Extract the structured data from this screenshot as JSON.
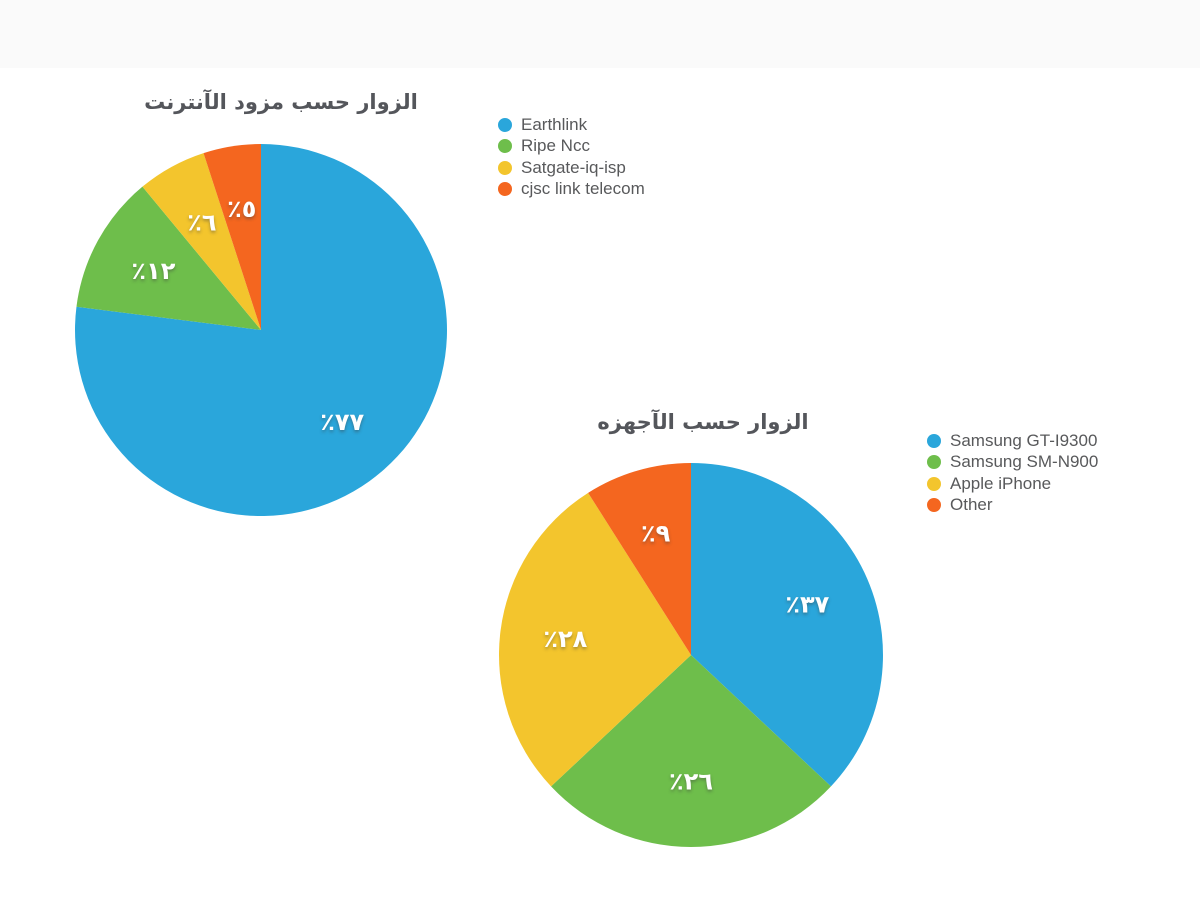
{
  "page": {
    "background": "#ffffff",
    "top_band_color": "#fafafa",
    "title_color": "#54565B",
    "legend_text_color": "#58595B",
    "slice_label_color": "#FFFFFF"
  },
  "chart_data": [
    {
      "type": "pie",
      "title": "الزوار حسب مزود الآنترنت",
      "legend_position": "right",
      "start_angle_deg": 0,
      "direction": "clockwise",
      "slices": [
        {
          "label": "Earthlink",
          "value": 77,
          "pct_label": "٪٧٧",
          "color": "#2AA6DB"
        },
        {
          "label": "Ripe Ncc",
          "value": 12,
          "pct_label": "٪١٢",
          "color": "#6EBE4B"
        },
        {
          "label": "Satgate-iq-isp",
          "value": 6,
          "pct_label": "٪٦",
          "color": "#F3C52D"
        },
        {
          "label": "cjsc link telecom",
          "value": 5,
          "pct_label": "٪٥",
          "color": "#F4661F"
        }
      ]
    },
    {
      "type": "pie",
      "title": "الزوار حسب الآجهزه",
      "legend_position": "right",
      "start_angle_deg": 0,
      "direction": "clockwise",
      "slices": [
        {
          "label": "Samsung GT-I9300",
          "value": 37,
          "pct_label": "٪٣٧",
          "color": "#2AA6DB"
        },
        {
          "label": "Samsung SM-N900",
          "value": 26,
          "pct_label": "٪٢٦",
          "color": "#6EBE4B"
        },
        {
          "label": "Apple iPhone",
          "value": 28,
          "pct_label": "٪٢٨",
          "color": "#F3C52D"
        },
        {
          "label": "Other",
          "value": 9,
          "pct_label": "٪٩",
          "color": "#F4661F"
        }
      ]
    }
  ]
}
